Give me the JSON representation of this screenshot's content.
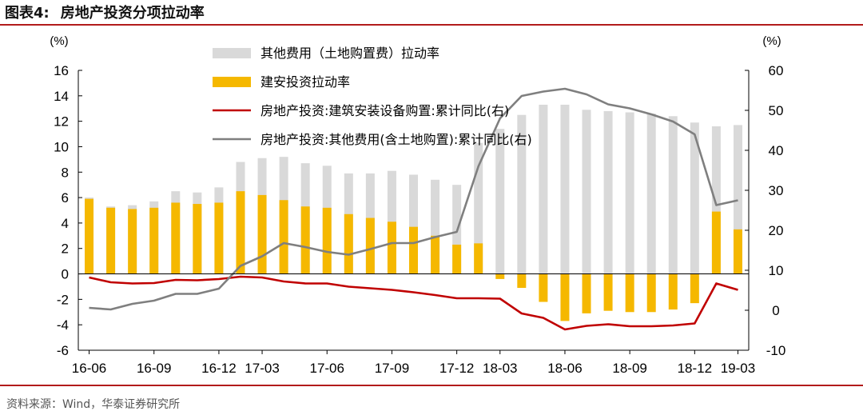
{
  "figure": {
    "label": "图表4:",
    "title": "房地产投资分项拉动率",
    "source": "资料来源：Wind，华泰证券研究所"
  },
  "colors": {
    "other_cost_bar": "#d9d9d9",
    "construction_bar": "#f5b800",
    "construction_equipment_line": "#c00000",
    "other_cost_line": "#7f7f7f",
    "rule": "#b21b1b"
  },
  "chart_data": {
    "type": "bar",
    "left_axis": {
      "unit": "(%)",
      "ylim": [
        -6,
        16
      ],
      "ticks": [
        -6,
        -4,
        -2,
        0,
        2,
        4,
        6,
        8,
        10,
        12,
        14,
        16
      ]
    },
    "right_axis": {
      "unit": "(%)",
      "ylim": [
        -10,
        60
      ],
      "ticks": [
        -10,
        0,
        10,
        20,
        30,
        40,
        50,
        60
      ]
    },
    "x_tick_labels": [
      "16-06",
      "16-09",
      "16-12",
      "17-03",
      "17-06",
      "17-09",
      "17-12",
      "18-03",
      "18-06",
      "18-09",
      "18-12",
      "19-03"
    ],
    "x_periods": [
      "16-06",
      "16-07",
      "16-08",
      "16-09",
      "16-10",
      "16-11",
      "16-12",
      "17-02",
      "17-03",
      "17-04",
      "17-05",
      "17-06",
      "17-07",
      "17-08",
      "17-09",
      "17-10",
      "17-11",
      "17-12",
      "18-02",
      "18-03",
      "18-04",
      "18-05",
      "18-06",
      "18-07",
      "18-08",
      "18-09",
      "18-10",
      "18-11",
      "18-12",
      "19-02",
      "19-03"
    ],
    "legend_position": "top-center",
    "series": [
      {
        "name": "其他费用（土地购置费）拉动率",
        "type": "bar",
        "axis": "left",
        "values": [
          6.0,
          5.3,
          5.4,
          5.7,
          6.5,
          6.4,
          6.8,
          8.8,
          9.1,
          9.2,
          8.7,
          8.5,
          7.9,
          7.9,
          8.1,
          7.8,
          7.4,
          7.0,
          10.3,
          11.4,
          12.5,
          13.3,
          13.3,
          12.9,
          12.8,
          12.7,
          12.6,
          12.4,
          11.9,
          11.6,
          11.7
        ]
      },
      {
        "name": "建安投资拉动率",
        "type": "bar",
        "axis": "left",
        "values": [
          5.9,
          5.2,
          5.1,
          5.2,
          5.6,
          5.5,
          5.6,
          6.5,
          6.2,
          5.8,
          5.3,
          5.2,
          4.7,
          4.4,
          4.1,
          3.7,
          3.0,
          2.3,
          2.4,
          -0.4,
          -1.1,
          -2.2,
          -3.7,
          -3.1,
          -2.9,
          -3.0,
          -3.0,
          -2.8,
          -2.3,
          4.9,
          3.5
        ]
      },
      {
        "name": "房地产投资:建筑安装设备购置:累计同比(右)",
        "type": "line",
        "axis": "right",
        "values": [
          8.2,
          7.0,
          6.7,
          6.8,
          7.6,
          7.5,
          7.8,
          8.4,
          8.2,
          7.2,
          6.7,
          6.7,
          5.9,
          5.5,
          5.1,
          4.5,
          3.8,
          3.0,
          3.0,
          2.9,
          -0.8,
          -1.9,
          -4.8,
          -3.9,
          -3.5,
          -4.0,
          -4.0,
          -3.8,
          -3.3,
          6.7,
          5.1
        ]
      },
      {
        "name": "房地产投资:其他费用(含土地购置):累计同比(右)",
        "type": "line",
        "axis": "right",
        "values": [
          0.6,
          0.2,
          1.6,
          2.4,
          4.1,
          4.1,
          5.4,
          11.1,
          13.5,
          16.8,
          15.8,
          14.6,
          13.9,
          15.3,
          16.8,
          16.8,
          18.3,
          19.6,
          36.0,
          48.0,
          53.6,
          54.7,
          55.4,
          54.0,
          51.5,
          50.5,
          49.0,
          47.2,
          44.0,
          26.3,
          27.5
        ]
      }
    ]
  }
}
